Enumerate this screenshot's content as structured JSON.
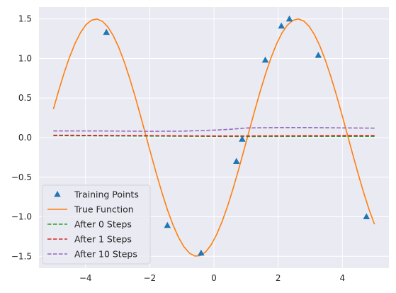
{
  "chart_data": {
    "type": "line",
    "title": "",
    "xlabel": "",
    "ylabel": "",
    "xlim": [
      -5.45,
      5.45
    ],
    "ylim": [
      -1.65,
      1.65
    ],
    "xticks": [
      -4,
      -2,
      0,
      2,
      4
    ],
    "xtick_labels": [
      "−4",
      "−2",
      "0",
      "2",
      "4"
    ],
    "yticks": [
      -1.5,
      -1.0,
      -0.5,
      0.0,
      0.5,
      1.0,
      1.5
    ],
    "ytick_labels": [
      "−1.5",
      "−1.0",
      "−0.5",
      "0.0",
      "0.5",
      "1.0",
      "1.5"
    ],
    "grid": true,
    "legend_position": "lower-left",
    "colors": {
      "background": "#eaeaf2",
      "grid": "#ffffff",
      "text": "#262626",
      "training": "#1f77b4",
      "true": "#ff7f0e",
      "step0": "#2ca02c",
      "step1": "#d62728",
      "step10": "#9467bd"
    },
    "training_points": {
      "name": "Training Points",
      "marker": "triangle",
      "color": "#1f77b4",
      "x": [
        -3.35,
        -1.45,
        -0.4,
        0.7,
        0.88,
        1.6,
        2.1,
        2.35,
        3.25,
        4.75
      ],
      "y": [
        1.33,
        -1.11,
        -1.46,
        -0.3,
        -0.02,
        0.98,
        1.41,
        1.5,
        1.04,
        -1.0
      ]
    },
    "true_function": {
      "name": "True Function",
      "style": "solid",
      "color": "#ff7f0e",
      "amplitude": 1.5,
      "phase": -1.04,
      "x_start": -5,
      "x_end": 5
    },
    "series": [
      {
        "name": "After 0 Steps",
        "style": "dashed",
        "color": "#2ca02c",
        "x": [
          -5,
          -4,
          -3,
          -2,
          -1,
          0,
          1,
          2,
          3,
          4,
          5
        ],
        "y": [
          0.025,
          0.024,
          0.022,
          0.02,
          0.018,
          0.016,
          0.014,
          0.015,
          0.016,
          0.016,
          0.016
        ]
      },
      {
        "name": "After 1 Steps",
        "style": "dashed",
        "color": "#d62728",
        "x": [
          -5,
          -4,
          -3,
          -2,
          -1,
          0,
          1,
          2,
          3,
          4,
          5
        ],
        "y": [
          0.03,
          0.029,
          0.027,
          0.025,
          0.023,
          0.021,
          0.021,
          0.023,
          0.024,
          0.025,
          0.026
        ]
      },
      {
        "name": "After 10 Steps",
        "style": "dashed",
        "color": "#9467bd",
        "x": [
          -5,
          -4,
          -3,
          -2,
          -1,
          0,
          0.5,
          1,
          1.5,
          2,
          3,
          4,
          5
        ],
        "y": [
          0.085,
          0.085,
          0.083,
          0.08,
          0.082,
          0.095,
          0.105,
          0.122,
          0.125,
          0.127,
          0.127,
          0.123,
          0.12
        ]
      }
    ],
    "legend": [
      "Training Points",
      "True Function",
      "After 0 Steps",
      "After 1 Steps",
      "After 10 Steps"
    ]
  }
}
